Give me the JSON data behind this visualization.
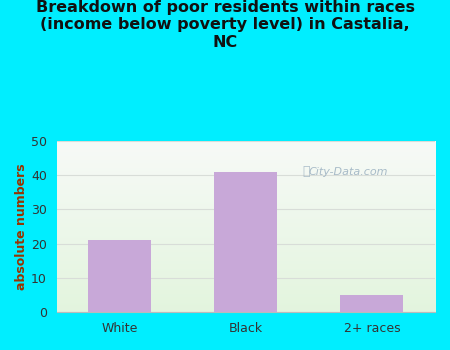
{
  "title": "Breakdown of poor residents within races\n(income below poverty level) in Castalia,\nNC",
  "categories": [
    "White",
    "Black",
    "2+ races"
  ],
  "values": [
    21,
    41,
    5
  ],
  "bar_color": "#c8a8d8",
  "ylabel": "absolute numbers",
  "ylim": [
    0,
    50
  ],
  "yticks": [
    0,
    10,
    20,
    30,
    40,
    50
  ],
  "background_outer": "#00eeff",
  "grid_color": "#e0e0e0",
  "watermark": "City-Data.com",
  "title_fontsize": 11.5,
  "axis_label_fontsize": 9,
  "tick_fontsize": 9,
  "ylabel_color": "#993300",
  "title_color": "#111111"
}
